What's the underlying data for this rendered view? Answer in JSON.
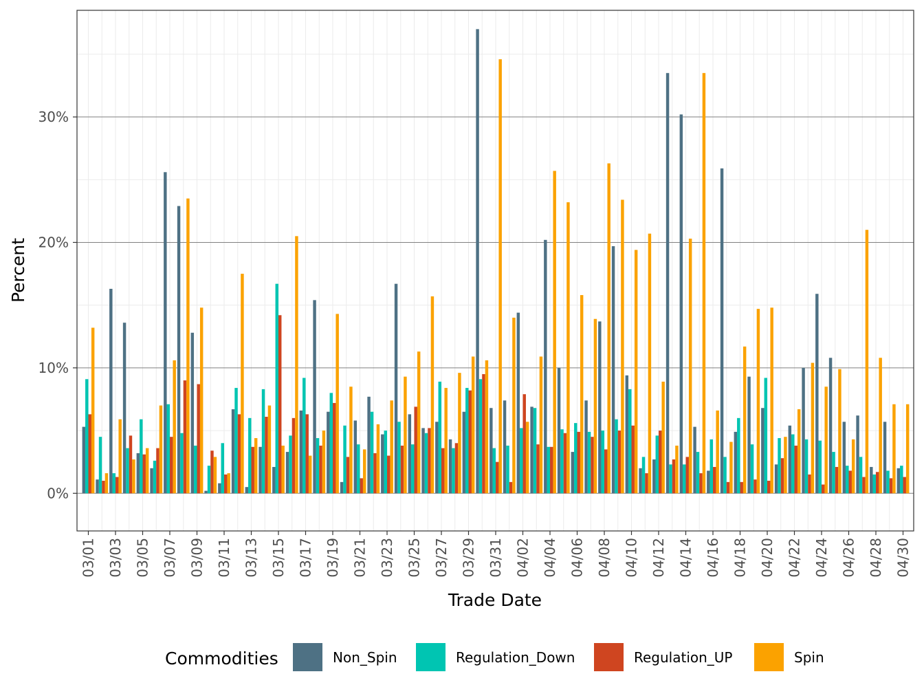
{
  "chart_data": {
    "type": "bar",
    "xlabel": "Trade Date",
    "ylabel": "Percent",
    "ylim": [
      -3.0,
      38.5
    ],
    "y_ticks": [
      0,
      10,
      20,
      30
    ],
    "y_tick_labels": [
      "0%",
      "10%",
      "20%",
      "30%"
    ],
    "grid": true,
    "legend": {
      "title": "Commodities",
      "position": "bottom"
    },
    "categories": [
      "03/01",
      "03/02",
      "03/03",
      "03/04",
      "03/05",
      "03/06",
      "03/07",
      "03/08",
      "03/09",
      "03/10",
      "03/11",
      "03/12",
      "03/13",
      "03/14",
      "03/15",
      "03/16",
      "03/17",
      "03/18",
      "03/19",
      "03/20",
      "03/21",
      "03/22",
      "03/23",
      "03/24",
      "03/25",
      "03/26",
      "03/27",
      "03/28",
      "03/29",
      "03/30",
      "03/31",
      "04/01",
      "04/02",
      "04/03",
      "04/04",
      "04/05",
      "04/06",
      "04/07",
      "04/08",
      "04/09",
      "04/10",
      "04/11",
      "04/12",
      "04/13",
      "04/14",
      "04/15",
      "04/16",
      "04/17",
      "04/18",
      "04/19",
      "04/20",
      "04/21",
      "04/22",
      "04/23",
      "04/24",
      "04/25",
      "04/26",
      "04/27",
      "04/28",
      "04/29",
      "04/30"
    ],
    "x_tick_labels": [
      "03/01",
      "03/03",
      "03/05",
      "03/07",
      "03/09",
      "03/11",
      "03/13",
      "03/15",
      "03/17",
      "03/19",
      "03/21",
      "03/23",
      "03/25",
      "03/27",
      "03/29",
      "03/31",
      "04/02",
      "04/04",
      "04/06",
      "04/08",
      "04/10",
      "04/12",
      "04/14",
      "04/16",
      "04/18",
      "04/20",
      "04/22",
      "04/24",
      "04/26",
      "04/28",
      "04/30"
    ],
    "series": [
      {
        "name": "Non_Spin",
        "color": "#4e7184",
        "values": [
          5.3,
          1.1,
          16.3,
          13.6,
          3.2,
          2.0,
          25.6,
          22.9,
          12.8,
          0.2,
          0.8,
          6.7,
          0.5,
          3.7,
          2.1,
          3.3,
          6.6,
          15.4,
          6.5,
          0.9,
          5.8,
          7.7,
          4.7,
          16.7,
          6.3,
          5.2,
          5.7,
          4.3,
          6.5,
          37.0,
          6.8,
          7.4,
          14.4,
          6.9,
          20.2,
          10.0,
          3.3,
          7.4,
          13.7,
          19.7,
          9.4,
          2.0,
          2.7,
          33.5,
          30.2,
          5.3,
          1.8,
          25.9,
          4.9,
          9.3,
          6.8,
          2.3,
          5.4,
          10.0,
          15.9,
          10.8,
          5.7,
          6.2,
          2.1,
          5.7,
          2.0
        ]
      },
      {
        "name": "Regulation_Down",
        "color": "#00c5b2",
        "values": [
          9.1,
          4.5,
          1.6,
          3.6,
          5.9,
          2.6,
          7.1,
          4.8,
          3.8,
          2.2,
          4.0,
          8.4,
          6.0,
          8.3,
          16.7,
          4.6,
          9.2,
          4.4,
          8.0,
          5.4,
          3.9,
          6.5,
          5.0,
          5.7,
          3.9,
          4.8,
          8.9,
          3.6,
          8.4,
          9.1,
          3.6,
          3.8,
          5.2,
          6.8,
          3.7,
          5.1,
          5.6,
          4.9,
          5.0,
          5.9,
          8.3,
          2.9,
          4.6,
          2.3,
          2.3,
          3.3,
          4.3,
          2.9,
          6.0,
          3.9,
          9.2,
          4.4,
          4.7,
          4.3,
          4.2,
          3.3,
          2.2,
          2.9,
          1.5,
          1.8,
          2.2
        ]
      },
      {
        "name": "Regulation_UP",
        "color": "#cf4520",
        "values": [
          6.3,
          1.0,
          1.3,
          4.6,
          3.1,
          3.6,
          4.5,
          9.0,
          8.7,
          3.4,
          1.5,
          6.3,
          3.7,
          6.1,
          14.2,
          6.0,
          6.3,
          3.8,
          7.2,
          2.9,
          1.2,
          3.2,
          3.0,
          3.8,
          6.9,
          5.2,
          3.6,
          4.0,
          8.2,
          9.5,
          2.5,
          0.9,
          7.9,
          3.9,
          3.7,
          4.8,
          4.9,
          4.5,
          3.5,
          5.0,
          5.4,
          1.6,
          5.0,
          2.7,
          2.9,
          1.6,
          2.1,
          0.9,
          0.9,
          1.1,
          1.0,
          2.8,
          3.8,
          1.5,
          0.7,
          2.1,
          1.8,
          1.3,
          1.7,
          1.2,
          1.3
        ]
      },
      {
        "name": "Spin",
        "color": "#fba200",
        "values": [
          13.2,
          1.6,
          5.9,
          2.7,
          3.6,
          7.0,
          10.6,
          23.5,
          14.8,
          2.9,
          1.6,
          17.5,
          4.4,
          7.0,
          3.8,
          20.5,
          3.0,
          5.0,
          14.3,
          8.5,
          3.5,
          5.5,
          7.4,
          9.3,
          11.3,
          15.7,
          8.4,
          9.6,
          10.9,
          10.6,
          34.6,
          14.0,
          5.7,
          10.9,
          25.7,
          23.2,
          15.8,
          13.9,
          26.3,
          23.4,
          19.4,
          20.7,
          8.9,
          3.8,
          20.3,
          33.5,
          6.6,
          4.1,
          11.7,
          14.7,
          14.8,
          4.5,
          6.7,
          10.4,
          8.5,
          9.9,
          4.3,
          21.0,
          10.8,
          7.1,
          7.1
        ]
      }
    ]
  }
}
